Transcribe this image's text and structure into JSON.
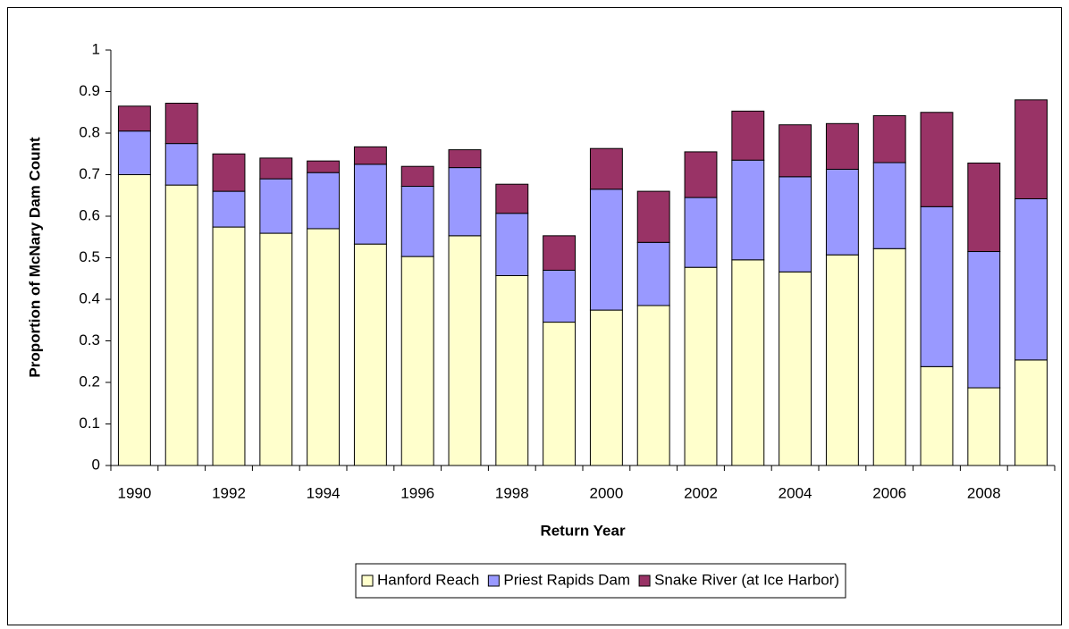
{
  "chart_data": {
    "type": "stacked_bar",
    "x_label": "Return Year",
    "y_label": "Proportion of McNary Dam Count",
    "categories": [
      "1990",
      null,
      "1992",
      null,
      "1994",
      null,
      "1996",
      null,
      "1998",
      null,
      "2000",
      null,
      "2002",
      null,
      "2004",
      null,
      "2006",
      null,
      "2008",
      null
    ],
    "series": [
      {
        "name": "Hanford Reach",
        "color": "#ffffcc",
        "values": [
          0.7,
          0.675,
          0.574,
          0.559,
          0.57,
          0.533,
          0.503,
          0.553,
          0.457,
          0.345,
          0.374,
          0.385,
          0.477,
          0.495,
          0.466,
          0.507,
          0.522,
          0.238,
          0.187,
          0.254
        ]
      },
      {
        "name": "Priest Rapids Dam",
        "color": "#9999ff",
        "values": [
          0.105,
          0.1,
          0.086,
          0.131,
          0.135,
          0.192,
          0.169,
          0.164,
          0.15,
          0.125,
          0.291,
          0.152,
          0.168,
          0.24,
          0.229,
          0.206,
          0.207,
          0.385,
          0.328,
          0.388
        ]
      },
      {
        "name": "Snake River (at Ice Harbor)",
        "color": "#993366",
        "values": [
          0.06,
          0.097,
          0.09,
          0.05,
          0.028,
          0.042,
          0.048,
          0.043,
          0.07,
          0.083,
          0.098,
          0.123,
          0.11,
          0.118,
          0.125,
          0.11,
          0.113,
          0.227,
          0.213,
          0.238
        ]
      }
    ],
    "ylim": [
      0,
      1
    ],
    "yticks": [
      0,
      0.1,
      0.2,
      0.3,
      0.4,
      0.5,
      0.6,
      0.7,
      0.8,
      0.9,
      1
    ],
    "legend": "bottom"
  }
}
